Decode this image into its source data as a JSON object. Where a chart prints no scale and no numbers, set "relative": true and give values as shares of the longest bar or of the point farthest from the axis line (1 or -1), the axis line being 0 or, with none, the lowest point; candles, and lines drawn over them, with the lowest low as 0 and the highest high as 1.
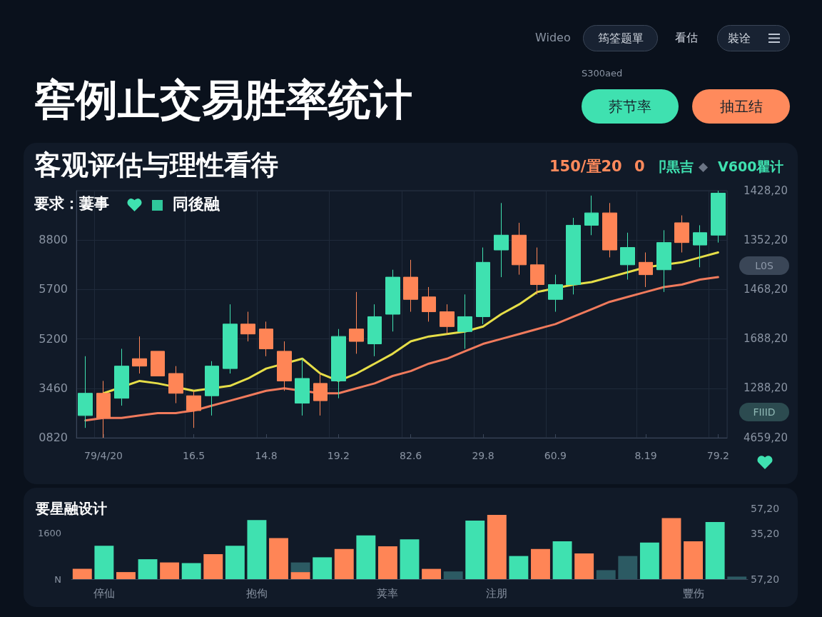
{
  "chart_data": [
    {
      "type": "candlestick",
      "title": "窖例止交易胜率统计",
      "subtitle": "客观评估与理性看待",
      "relative": true,
      "categories": [
        null,
        "79/4/20",
        null,
        null,
        null,
        null,
        "16.5",
        null,
        null,
        null,
        "14.8",
        null,
        null,
        null,
        "19.2",
        null,
        null,
        null,
        "82.6",
        null,
        null,
        null,
        "29.8",
        null,
        null,
        null,
        "60.9",
        null,
        null,
        null,
        null,
        "8.19",
        null,
        null,
        null,
        "79.2"
      ],
      "ohlc": [
        [
          0.09,
          0.33,
          0.04,
          0.18
        ],
        [
          0.18,
          0.23,
          0.0,
          0.08
        ],
        [
          0.16,
          0.36,
          0.13,
          0.29
        ],
        [
          0.32,
          0.41,
          0.26,
          0.29
        ],
        [
          0.35,
          0.35,
          0.25,
          0.25
        ],
        [
          0.26,
          0.29,
          0.14,
          0.18
        ],
        [
          0.17,
          0.19,
          0.04,
          0.11
        ],
        [
          0.17,
          0.31,
          0.09,
          0.29
        ],
        [
          0.28,
          0.54,
          0.26,
          0.46
        ],
        [
          0.46,
          0.51,
          0.39,
          0.42
        ],
        [
          0.44,
          0.47,
          0.33,
          0.36
        ],
        [
          0.35,
          0.39,
          0.19,
          0.23
        ],
        [
          0.14,
          0.32,
          0.09,
          0.24
        ],
        [
          0.22,
          0.26,
          0.09,
          0.15
        ],
        [
          0.23,
          0.44,
          0.16,
          0.41
        ],
        [
          0.44,
          0.59,
          0.34,
          0.39
        ],
        [
          0.38,
          0.54,
          0.33,
          0.49
        ],
        [
          0.5,
          0.68,
          0.43,
          0.65
        ],
        [
          0.65,
          0.72,
          0.51,
          0.56
        ],
        [
          0.57,
          0.61,
          0.47,
          0.51
        ],
        [
          0.51,
          0.54,
          0.42,
          0.45
        ],
        [
          0.43,
          0.58,
          0.36,
          0.49
        ],
        [
          0.49,
          0.77,
          0.46,
          0.71
        ],
        [
          0.76,
          0.95,
          0.65,
          0.82
        ],
        [
          0.82,
          0.87,
          0.66,
          0.7
        ],
        [
          0.7,
          0.77,
          0.58,
          0.62
        ],
        [
          0.56,
          0.66,
          0.51,
          0.62
        ],
        [
          0.62,
          0.89,
          0.58,
          0.86
        ],
        [
          0.86,
          0.98,
          0.82,
          0.91
        ],
        [
          0.91,
          0.95,
          0.73,
          0.76
        ],
        [
          0.7,
          0.83,
          0.64,
          0.77
        ],
        [
          0.71,
          0.75,
          0.61,
          0.66
        ],
        [
          0.68,
          0.84,
          0.59,
          0.79
        ],
        [
          0.87,
          0.9,
          0.75,
          0.79
        ],
        [
          0.78,
          0.86,
          0.69,
          0.83
        ],
        [
          0.82,
          1.0,
          0.79,
          0.99
        ]
      ],
      "colors": [
        "#3fe1b0",
        "#ff8556",
        "#3fe1b0",
        "#ff8556",
        "#ff8556",
        "#ff8556",
        "#ff8556",
        "#3fe1b0",
        "#3fe1b0",
        "#ff8556",
        "#ff8556",
        "#ff8556",
        "#3fe1b0",
        "#ff8556",
        "#3fe1b0",
        "#ff8556",
        "#3fe1b0",
        "#3fe1b0",
        "#ff8556",
        "#ff8556",
        "#ff8556",
        "#3fe1b0",
        "#3fe1b0",
        "#3fe1b0",
        "#ff8556",
        "#ff8556",
        "#3fe1b0",
        "#3fe1b0",
        "#3fe1b0",
        "#ff8556",
        "#3fe1b0",
        "#ff8556",
        "#3fe1b0",
        "#ff8556",
        "#3fe1b0",
        "#3fe1b0"
      ],
      "series": [
        {
          "type": "line",
          "color": "#e6de48",
          "values": [
            null,
            0.18,
            null,
            0.23,
            0.22,
            null,
            0.19,
            null,
            0.21,
            0.24,
            0.28,
            null,
            0.32,
            0.26,
            0.23,
            0.26,
            0.3,
            0.34,
            0.39,
            0.41,
            0.42,
            0.43,
            0.45,
            0.5,
            0.54,
            0.59,
            null,
            0.62,
            0.63,
            0.65,
            0.67,
            0.69,
            null,
            0.71,
            0.73,
            0.75
          ]
        },
        {
          "type": "line",
          "color": "#f07a5c",
          "values": [
            0.07,
            0.08,
            0.08,
            0.09,
            0.1,
            0.1,
            0.11,
            0.13,
            0.15,
            0.17,
            0.19,
            0.2,
            null,
            0.18,
            0.18,
            0.2,
            0.22,
            0.25,
            0.27,
            0.3,
            0.32,
            0.35,
            0.38,
            0.4,
            0.42,
            0.44,
            0.46,
            0.49,
            0.52,
            0.55,
            0.57,
            0.59,
            0.61,
            0.62,
            0.64,
            0.65
          ]
        }
      ],
      "grid": true,
      "annotations": [
        "Wideo",
        "筠筌题單",
        "看估",
        "裝诠",
        "S300aed",
        "荞节率",
        "抽五结",
        "要求：萋事",
        "同後融",
        "150/置20",
        "0",
        "卩黒吉",
        "V600瞿计",
        "L0S",
        "FIIID",
        "8800",
        "5700",
        "5200",
        "3460",
        "0820",
        "1428,20",
        "1352,20",
        "1468,20",
        "1688,20",
        "1288,20",
        "4659,20"
      ]
    },
    {
      "type": "bar",
      "title": "要星融设计",
      "relative": true,
      "categories": [
        null,
        "倅仙",
        null,
        null,
        null,
        null,
        null,
        null,
        "抱佝",
        null,
        null,
        null,
        null,
        null,
        "荚率",
        null,
        null,
        null,
        null,
        "注朋",
        null,
        null,
        null,
        null,
        null,
        null,
        null,
        null,
        "豐伤",
        null,
        null
      ],
      "stacked": true,
      "series": [
        {
          "colors": [
            "#ff8556",
            "#3fe1b0",
            "#ff8556",
            "#3fe1b0",
            "#ff8556",
            "#3fe1b0",
            "#ff8556",
            "#3fe1b0",
            "#3fe1b0",
            "#ff8556",
            "#ff8556",
            "#3fe1b0",
            "#ff8556",
            "#3fe1b0",
            "#ff8556",
            "#3fe1b0",
            "#ff8556",
            "#2c5a63",
            "#3fe1b0",
            "#ff8556",
            "#3fe1b0",
            "#ff8556",
            "#3fe1b0",
            "#ff8556",
            "#2c5a63",
            "#2c5a63",
            "#3fe1b0",
            "#ff8556",
            "#ff8556",
            "#3fe1b0",
            "#2c5a63"
          ],
          "values": [
            0.16,
            0.52,
            0.11,
            0.31,
            0.26,
            0.25,
            0.39,
            0.52,
            0.92,
            0.64,
            0.11,
            0.34,
            0.47,
            0.68,
            0.51,
            0.62,
            0.16,
            0.12,
            0.91,
            1,
            0.36,
            0.47,
            0.59,
            0.4,
            0.14,
            0.36,
            0.57,
            0.95,
            0.59,
            0.89,
            0.04
          ]
        },
        {
          "color": "#2c5a63",
          "values": [
            null,
            null,
            null,
            null,
            null,
            null,
            null,
            null,
            null,
            null,
            0.15,
            null,
            null,
            null,
            null,
            null,
            null,
            null,
            null,
            null,
            null,
            null,
            null,
            null,
            null,
            null,
            null,
            null,
            null,
            null,
            null
          ]
        }
      ],
      "annotations": [
        "1600",
        "N",
        "57,20",
        "35,20",
        "57,20"
      ]
    }
  ]
}
